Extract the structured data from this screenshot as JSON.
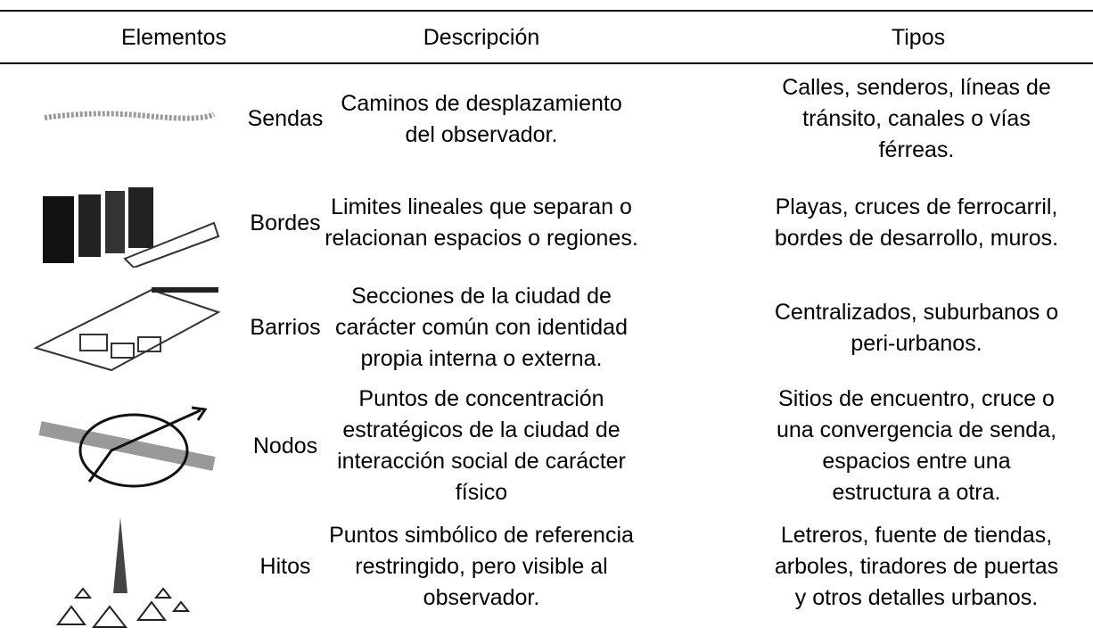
{
  "table": {
    "headers": [
      "Elementos",
      "Descripción",
      "Tipos"
    ],
    "rows": [
      {
        "element": "Sendas",
        "description": [
          "Caminos de desplazamiento",
          "del observador."
        ],
        "types": [
          "Calles, senderos, líneas de",
          "tránsito, canales o vías",
          "férreas."
        ]
      },
      {
        "element": "Bordes",
        "description": [
          "Limites lineales que separan o",
          "relacionan espacios o regiones."
        ],
        "types": [
          "Playas, cruces de ferrocarril,",
          "bordes de desarrollo, muros."
        ]
      },
      {
        "element": "Barrios",
        "description": [
          "Secciones de la ciudad de",
          "carácter común con identidad",
          "propia interna o externa."
        ],
        "types": [
          "Centralizados, suburbanos o",
          "peri-urbanos."
        ]
      },
      {
        "element": "Nodos",
        "description": [
          "Puntos de concentración",
          "estratégicos de la ciudad de",
          "interacción social de carácter",
          "físico"
        ],
        "types": [
          "Sitios de encuentro, cruce o",
          "una convergencia de senda,",
          "espacios entre una",
          "estructura a otra."
        ]
      },
      {
        "element": "Hitos",
        "description": [
          "Puntos simbólico de referencia",
          "restringido, pero visible al",
          "observador."
        ],
        "types": [
          "Letreros, fuente de tiendas,",
          "arboles, tiradores de puertas",
          "y otros detalles urbanos."
        ]
      }
    ]
  }
}
